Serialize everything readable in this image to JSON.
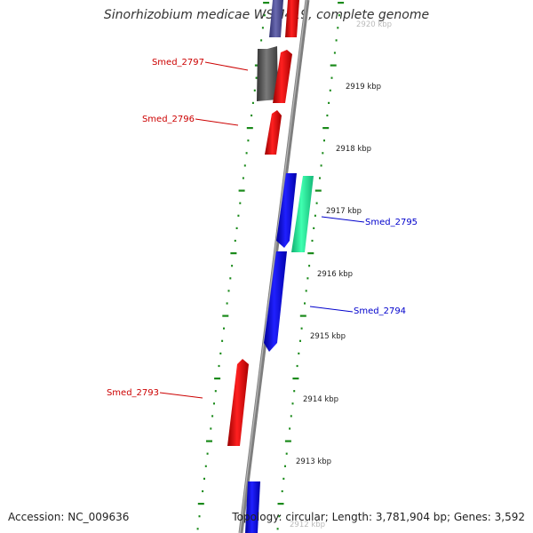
{
  "title": "Sinorhizobium medicae WSM419, complete genome",
  "footer": {
    "accession": "Accession: NC_009636",
    "summary": "Topology: circular; Length: 3,781,904 bp; Genes: 3,592"
  },
  "colors": {
    "backbone": "#7f7f7f",
    "ticks": "#1a8a1a",
    "forward_gene": "#ff0000",
    "reverse_gene": "#0000ff",
    "other_gene": "#5a5a5a",
    "highlight_gene": "#22ee99",
    "label_red": "#cc0000",
    "label_blue": "#0000cc"
  },
  "ruler": {
    "unit": "kbp",
    "labels": [
      "2920 kbp",
      "2919 kbp",
      "2918 kbp",
      "2917 kbp",
      "2916 kbp",
      "2915 kbp",
      "2914 kbp",
      "2913 kbp",
      "2912 kbp"
    ]
  },
  "genes": [
    {
      "label": "Smed_2797",
      "color": "label_red"
    },
    {
      "label": "Smed_2796",
      "color": "label_red"
    },
    {
      "label": "Smed_2795",
      "color": "label_blue"
    },
    {
      "label": "Smed_2794",
      "color": "label_blue"
    },
    {
      "label": "Smed_2793",
      "color": "label_red"
    }
  ]
}
